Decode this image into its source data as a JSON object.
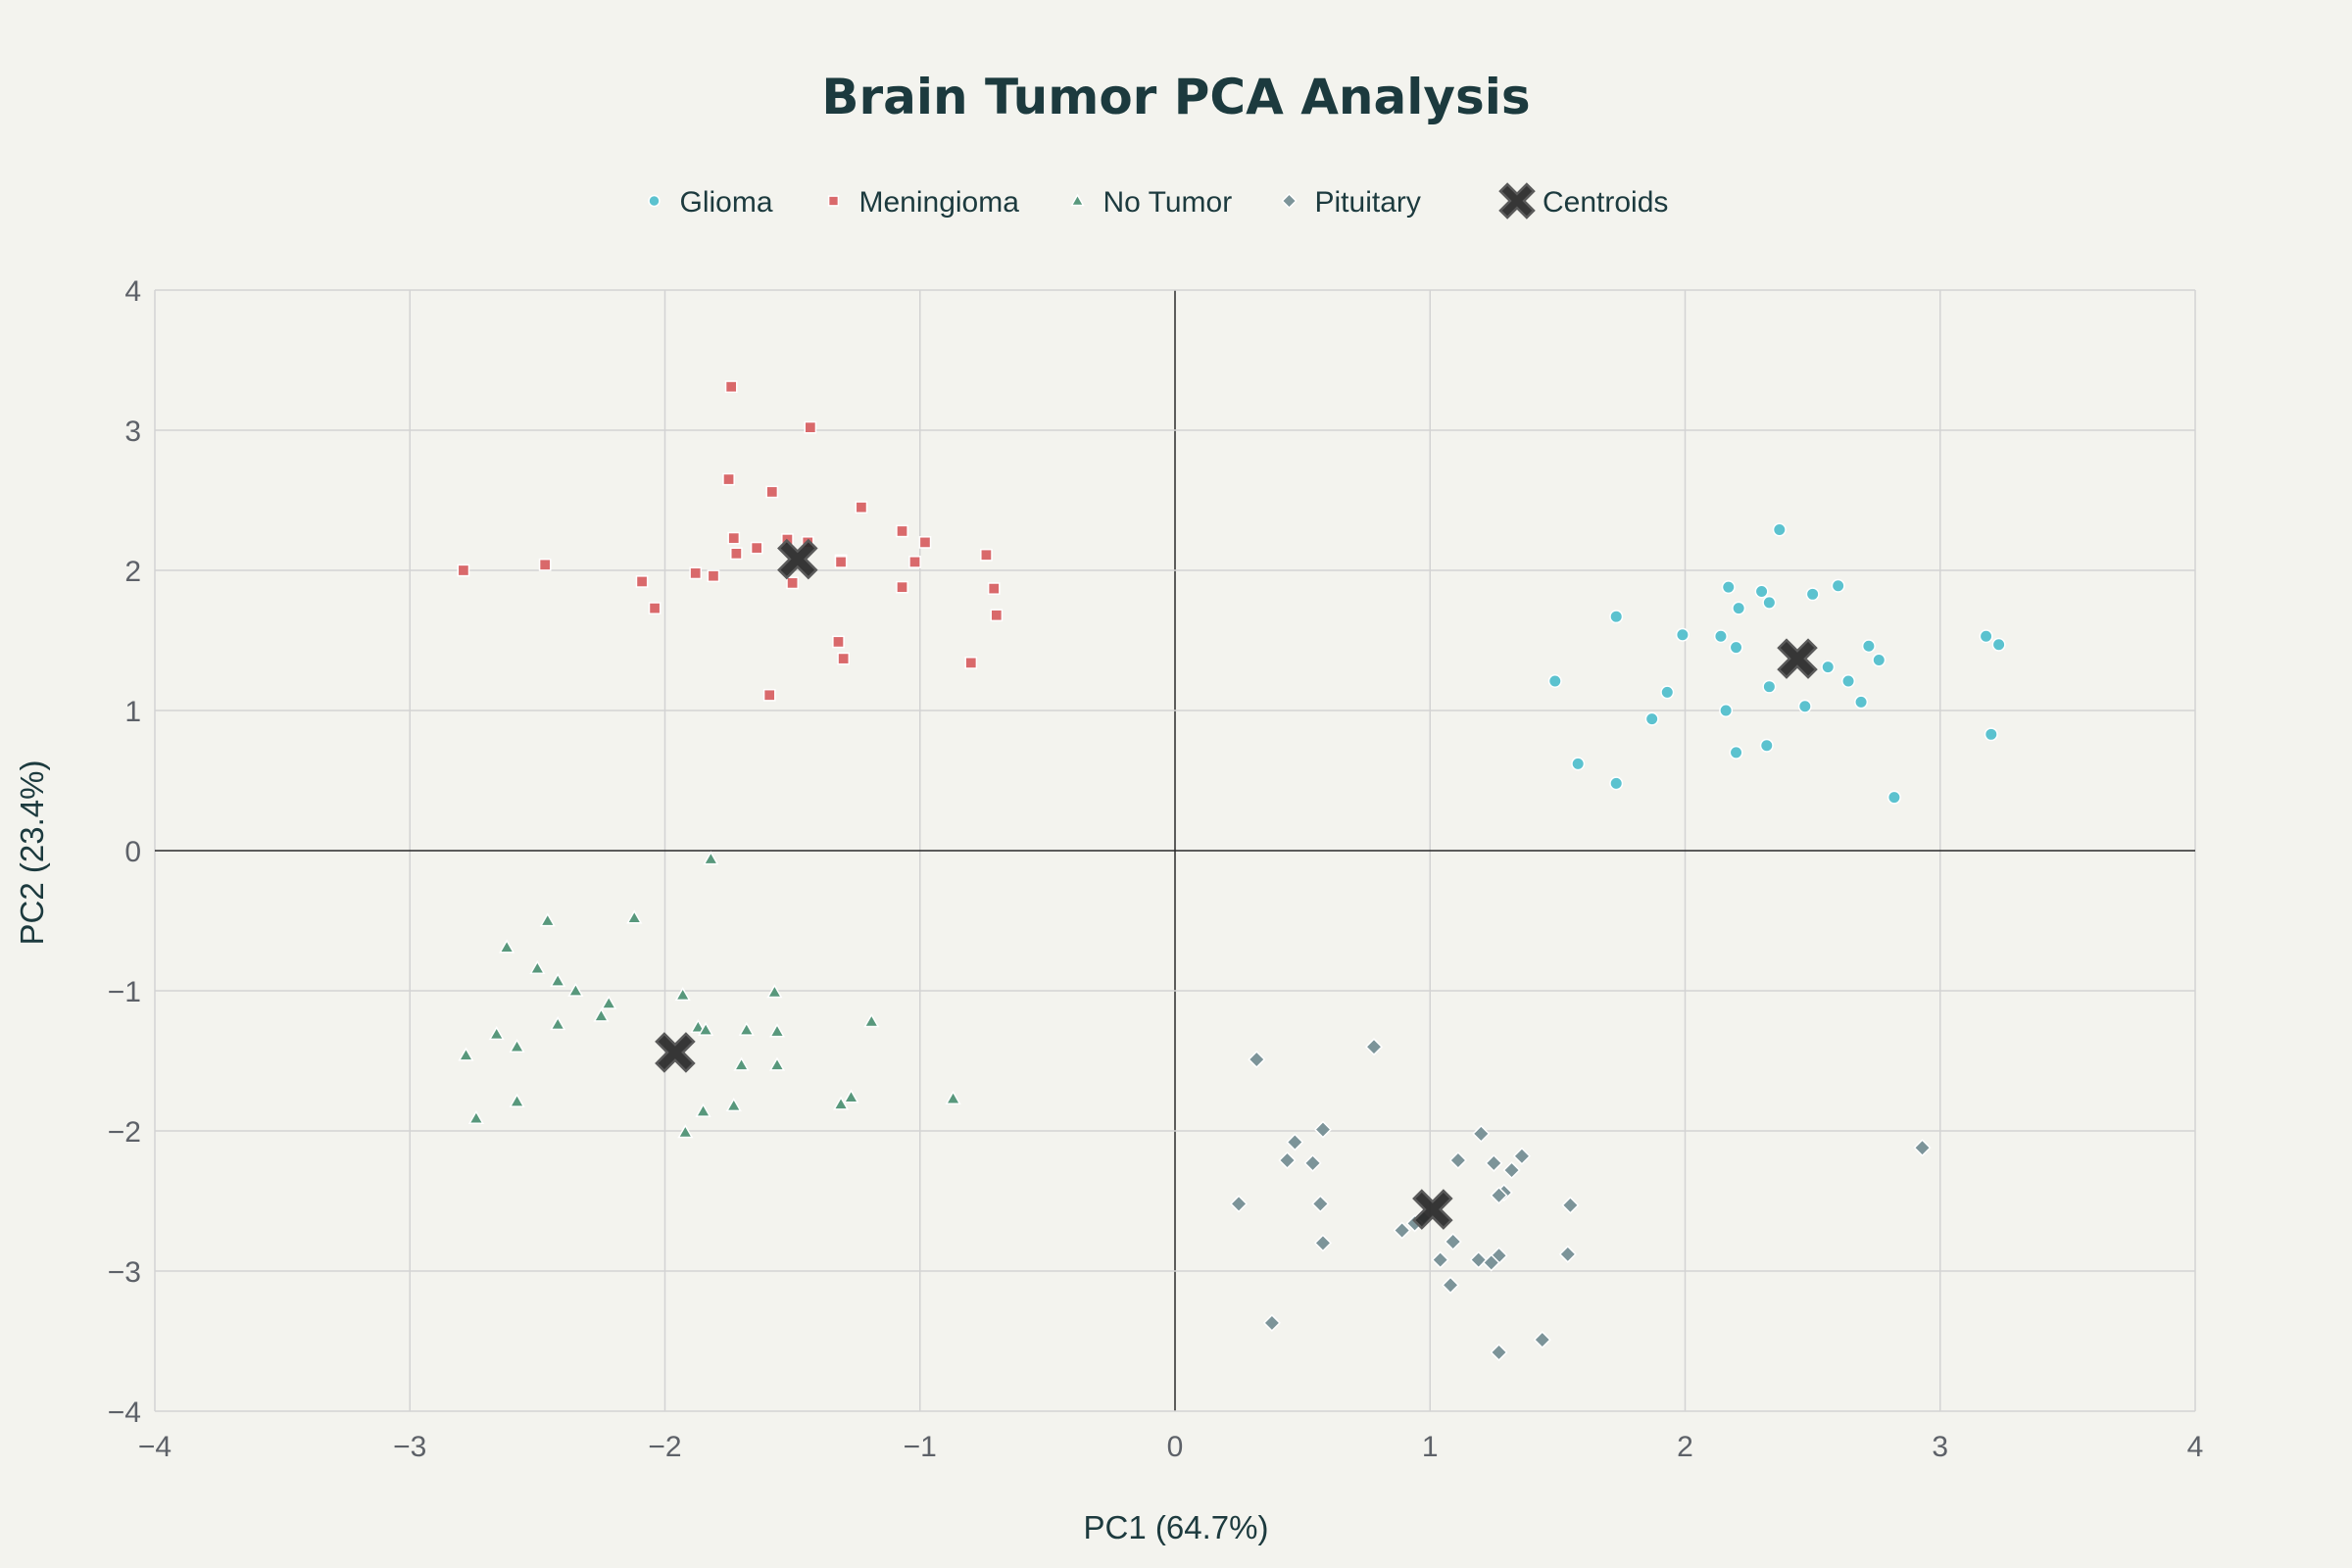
{
  "chart_data": {
    "type": "scatter",
    "title": "Brain Tumor PCA Analysis",
    "xlabel": "PC1 (64.7%)",
    "ylabel": "PC2 (23.4%)",
    "xlim": [
      -4,
      4
    ],
    "ylim": [
      -4,
      4
    ],
    "xticks": [
      "−4",
      "−3",
      "−2",
      "−1",
      "0",
      "1",
      "2",
      "3",
      "4"
    ],
    "yticks": [
      "−4",
      "−3",
      "−2",
      "−1",
      "0",
      "1",
      "2",
      "3",
      "4"
    ],
    "grid": true,
    "legend_position": "top-center-horizontal",
    "series": [
      {
        "name": "Glioma",
        "marker": "circle",
        "color": "#5bc2cf",
        "points": [
          [
            2.37,
            2.29
          ],
          [
            2.6,
            1.89
          ],
          [
            2.17,
            1.88
          ],
          [
            2.3,
            1.85
          ],
          [
            2.5,
            1.83
          ],
          [
            2.33,
            1.77
          ],
          [
            2.21,
            1.73
          ],
          [
            1.73,
            1.67
          ],
          [
            1.99,
            1.54
          ],
          [
            2.14,
            1.53
          ],
          [
            3.18,
            1.53
          ],
          [
            3.23,
            1.47
          ],
          [
            2.72,
            1.46
          ],
          [
            2.2,
            1.45
          ],
          [
            2.76,
            1.36
          ],
          [
            2.56,
            1.31
          ],
          [
            2.64,
            1.21
          ],
          [
            1.49,
            1.21
          ],
          [
            2.33,
            1.17
          ],
          [
            1.93,
            1.13
          ],
          [
            2.69,
            1.06
          ],
          [
            2.47,
            1.03
          ],
          [
            2.16,
            1.0
          ],
          [
            1.87,
            0.94
          ],
          [
            3.2,
            0.83
          ],
          [
            2.32,
            0.75
          ],
          [
            2.2,
            0.7
          ],
          [
            1.58,
            0.62
          ],
          [
            1.73,
            0.48
          ],
          [
            2.82,
            0.38
          ]
        ]
      },
      {
        "name": "Meningioma",
        "marker": "square",
        "color": "#d9696b",
        "points": [
          [
            -1.74,
            3.31
          ],
          [
            -1.43,
            3.02
          ],
          [
            -1.75,
            2.65
          ],
          [
            -1.58,
            2.56
          ],
          [
            -1.23,
            2.45
          ],
          [
            -1.07,
            2.28
          ],
          [
            -1.73,
            2.23
          ],
          [
            -1.52,
            2.22
          ],
          [
            -1.44,
            2.2
          ],
          [
            -0.98,
            2.2
          ],
          [
            -1.64,
            2.16
          ],
          [
            -1.72,
            2.12
          ],
          [
            -0.74,
            2.11
          ],
          [
            -1.31,
            2.07
          ],
          [
            -1.31,
            2.06
          ],
          [
            -1.02,
            2.06
          ],
          [
            -2.47,
            2.04
          ],
          [
            -2.79,
            2.0
          ],
          [
            -1.88,
            1.98
          ],
          [
            -1.81,
            1.96
          ],
          [
            -2.09,
            1.92
          ],
          [
            -1.5,
            1.91
          ],
          [
            -1.07,
            1.88
          ],
          [
            -0.71,
            1.87
          ],
          [
            -2.04,
            1.73
          ],
          [
            -0.7,
            1.68
          ],
          [
            -1.32,
            1.49
          ],
          [
            -1.3,
            1.37
          ],
          [
            -0.8,
            1.34
          ],
          [
            -1.59,
            1.11
          ]
        ]
      },
      {
        "name": "No Tumor",
        "marker": "triangle-up",
        "color": "#58987c",
        "points": [
          [
            -1.82,
            -0.06
          ],
          [
            -2.46,
            -0.5
          ],
          [
            -2.12,
            -0.48
          ],
          [
            -2.62,
            -0.69
          ],
          [
            -2.5,
            -0.84
          ],
          [
            -2.42,
            -0.93
          ],
          [
            -2.35,
            -1.0
          ],
          [
            -1.93,
            -1.03
          ],
          [
            -1.57,
            -1.01
          ],
          [
            -2.22,
            -1.09
          ],
          [
            -2.25,
            -1.18
          ],
          [
            -1.19,
            -1.22
          ],
          [
            -2.42,
            -1.24
          ],
          [
            -1.87,
            -1.26
          ],
          [
            -1.84,
            -1.28
          ],
          [
            -1.68,
            -1.28
          ],
          [
            -1.56,
            -1.29
          ],
          [
            -2.66,
            -1.31
          ],
          [
            -2.58,
            -1.4
          ],
          [
            -2.78,
            -1.46
          ],
          [
            -1.7,
            -1.53
          ],
          [
            -1.56,
            -1.53
          ],
          [
            -0.87,
            -1.77
          ],
          [
            -1.27,
            -1.76
          ],
          [
            -1.31,
            -1.81
          ],
          [
            -2.58,
            -1.79
          ],
          [
            -1.73,
            -1.82
          ],
          [
            -1.85,
            -1.86
          ],
          [
            -2.74,
            -1.91
          ],
          [
            -1.92,
            -2.01
          ]
        ]
      },
      {
        "name": "Pituitary",
        "marker": "diamond",
        "color": "#7c9499",
        "points": [
          [
            0.78,
            -1.4
          ],
          [
            0.32,
            -1.49
          ],
          [
            2.93,
            -2.12
          ],
          [
            0.58,
            -1.99
          ],
          [
            1.2,
            -2.02
          ],
          [
            0.47,
            -2.08
          ],
          [
            1.36,
            -2.18
          ],
          [
            0.44,
            -2.21
          ],
          [
            1.11,
            -2.21
          ],
          [
            0.54,
            -2.23
          ],
          [
            1.25,
            -2.23
          ],
          [
            1.32,
            -2.28
          ],
          [
            1.29,
            -2.44
          ],
          [
            1.27,
            -2.46
          ],
          [
            0.25,
            -2.52
          ],
          [
            0.57,
            -2.52
          ],
          [
            1.55,
            -2.53
          ],
          [
            0.97,
            -2.62
          ],
          [
            0.94,
            -2.66
          ],
          [
            0.89,
            -2.71
          ],
          [
            0.58,
            -2.8
          ],
          [
            1.09,
            -2.79
          ],
          [
            1.54,
            -2.88
          ],
          [
            1.27,
            -2.89
          ],
          [
            1.04,
            -2.92
          ],
          [
            1.19,
            -2.92
          ],
          [
            1.24,
            -2.94
          ],
          [
            1.08,
            -3.1
          ],
          [
            0.38,
            -3.37
          ],
          [
            1.44,
            -3.49
          ],
          [
            1.27,
            -3.58
          ]
        ]
      },
      {
        "name": "Centroids",
        "marker": "x",
        "color": "#2b2b2b",
        "points": [
          [
            2.44,
            1.37
          ],
          [
            -1.48,
            2.08
          ],
          [
            -1.96,
            -1.44
          ],
          [
            1.01,
            -2.56
          ]
        ]
      }
    ]
  }
}
